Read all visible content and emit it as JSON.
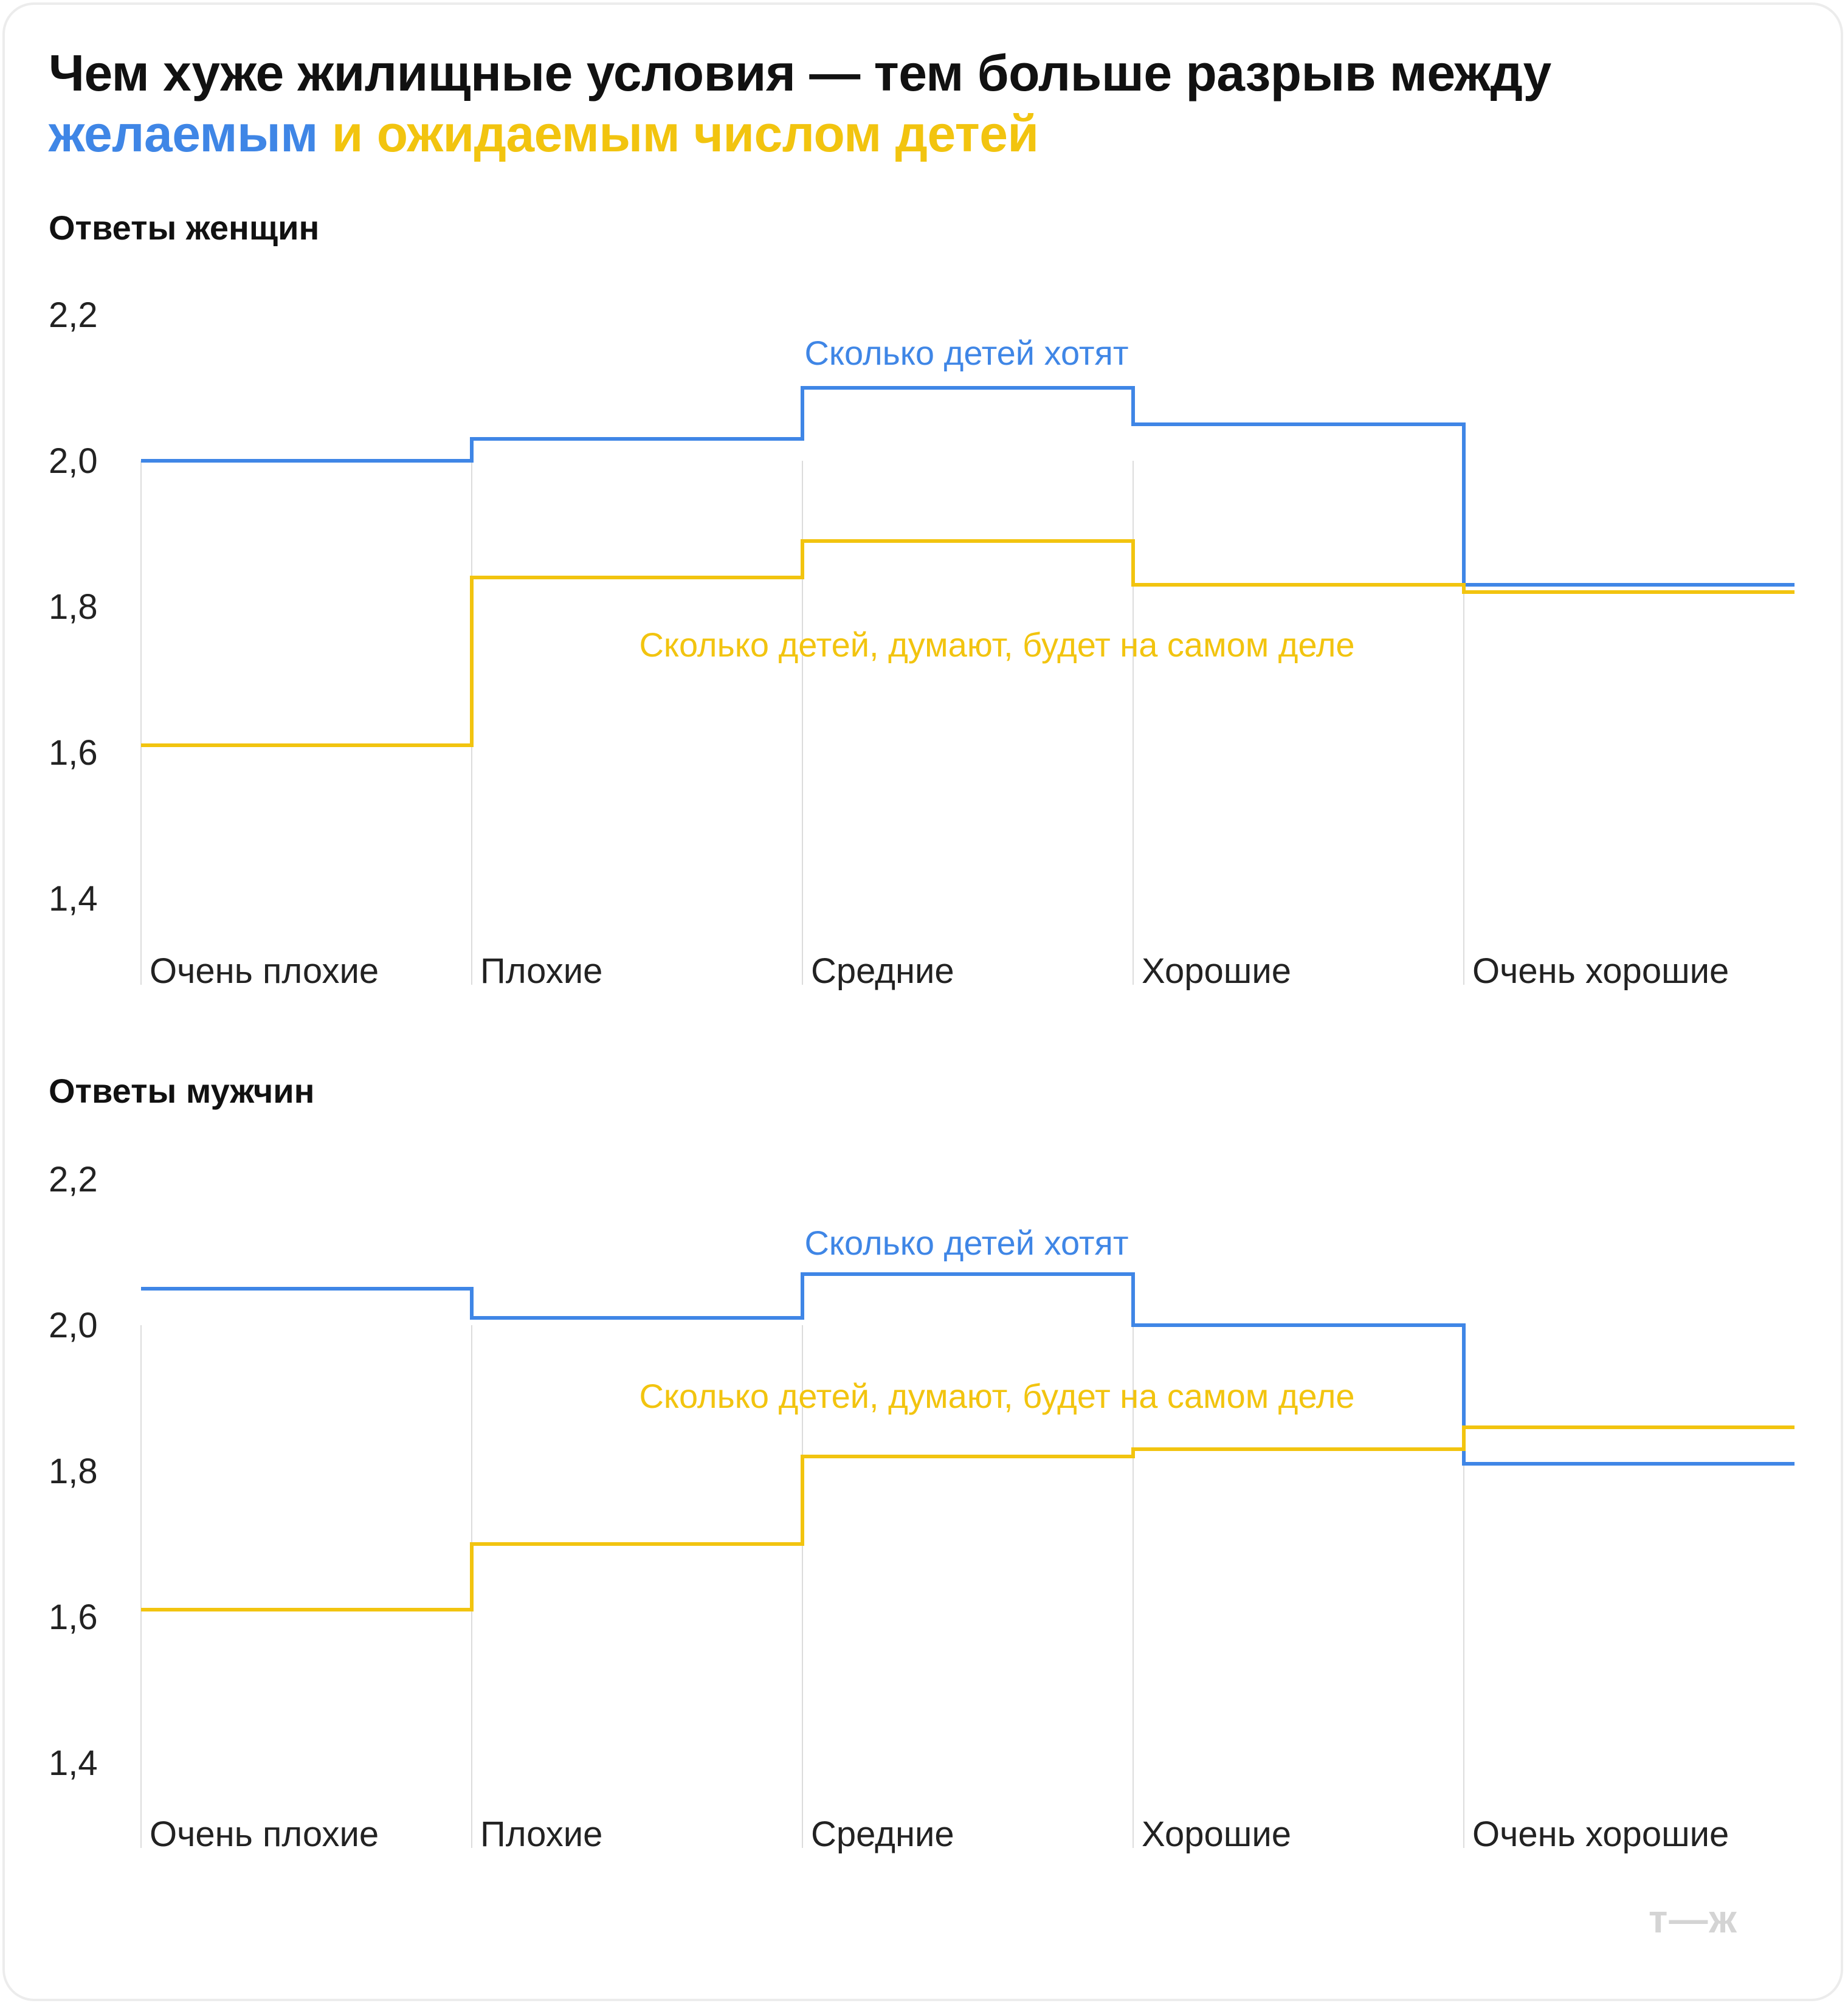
{
  "title": {
    "line1": "Чем хуже жилищные условия — тем больше разрыв между",
    "blue_part": "желаемым",
    "yellow_part": "и ожидаемым числом детей"
  },
  "colors": {
    "desired": "#3f86e6",
    "expected": "#f2c40f",
    "grid": "#dcdcdc"
  },
  "logo": "т—ж",
  "chart_data": [
    {
      "type": "line",
      "step": true,
      "title": "Ответы женщин",
      "categories": [
        "Очень плохие",
        "Плохие",
        "Средние",
        "Хорошие",
        "Очень хорошие"
      ],
      "yticks": [
        "2,2",
        "2,0",
        "1,8",
        "1,6",
        "1,4"
      ],
      "ylim": [
        1.4,
        2.2
      ],
      "series": [
        {
          "name": "Сколько детей хотят",
          "key": "desired",
          "values": [
            2.0,
            2.03,
            2.1,
            2.05,
            1.83
          ]
        },
        {
          "name": "Сколько детей, думают, будет на самом деле",
          "key": "expected",
          "values": [
            1.61,
            1.84,
            1.89,
            1.83,
            1.82
          ]
        }
      ]
    },
    {
      "type": "line",
      "step": true,
      "title": "Ответы мужчин",
      "categories": [
        "Очень плохие",
        "Плохие",
        "Средние",
        "Хорошие",
        "Очень хорошие"
      ],
      "yticks": [
        "2,2",
        "2,0",
        "1,8",
        "1,6",
        "1,4"
      ],
      "ylim": [
        1.4,
        2.2
      ],
      "series": [
        {
          "name": "Сколько детей хотят",
          "key": "desired",
          "values": [
            2.05,
            2.01,
            2.07,
            2.0,
            1.81
          ]
        },
        {
          "name": "Сколько детей, думают, будет на самом деле",
          "key": "expected",
          "values": [
            1.61,
            1.7,
            1.82,
            1.83,
            1.86
          ]
        }
      ]
    }
  ]
}
